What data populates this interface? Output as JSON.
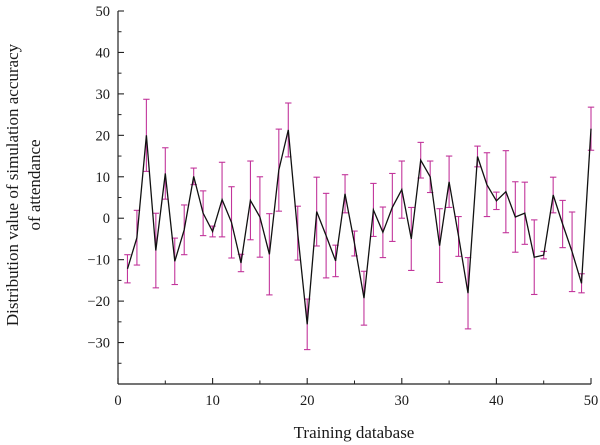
{
  "chart_data": {
    "type": "line",
    "xlabel": "Training database",
    "ylabel_lines": [
      "Distribution value of simulation accuracy",
      "of attendance"
    ],
    "xlim": [
      0,
      50
    ],
    "ylim": [
      -40,
      50
    ],
    "xticks": [
      "0",
      "10",
      "20",
      "30",
      "40",
      "50"
    ],
    "yticks": [
      "50",
      "40",
      "30",
      "20",
      "10",
      "0",
      "-10",
      "-20",
      "-30"
    ],
    "grid": false,
    "legend": "none",
    "line_color": "#111111",
    "errorbar_color": "#c2359b",
    "x": [
      1,
      2,
      3,
      4,
      5,
      6,
      7,
      8,
      9,
      10,
      11,
      12,
      13,
      14,
      15,
      16,
      17,
      18,
      19,
      20,
      21,
      22,
      23,
      24,
      25,
      26,
      27,
      28,
      29,
      30,
      31,
      32,
      33,
      34,
      35,
      36,
      37,
      38,
      39,
      40,
      41,
      42,
      43,
      44,
      45,
      46,
      47,
      48,
      49,
      50
    ],
    "y": [
      -12.2,
      -4.7,
      20.0,
      -7.8,
      10.8,
      -10.4,
      -2.8,
      10.1,
      1.2,
      -3.2,
      4.5,
      -1.0,
      -10.8,
      4.3,
      0.3,
      -8.7,
      11.6,
      21.3,
      -3.6,
      -25.6,
      1.6,
      -4.2,
      -10.3,
      5.9,
      -6.1,
      -19.3,
      2.0,
      -3.4,
      2.6,
      6.9,
      -5.0,
      14.0,
      10.0,
      -6.6,
      8.8,
      -4.4,
      -18.1,
      14.9,
      8.1,
      4.2,
      6.4,
      0.3,
      1.2,
      -9.4,
      -8.9,
      5.6,
      -1.4,
      -8.1,
      -15.7,
      21.6
    ],
    "error": [
      3.4,
      6.6,
      8.7,
      9.0,
      6.2,
      5.6,
      6.0,
      2.0,
      5.4,
      1.3,
      9.0,
      8.6,
      2.1,
      9.5,
      9.7,
      9.8,
      9.9,
      6.5,
      6.5,
      6.1,
      8.3,
      10.2,
      3.8,
      4.6,
      3.0,
      6.5,
      6.4,
      6.1,
      8.2,
      6.9,
      7.6,
      4.3,
      3.8,
      8.9,
      6.2,
      4.8,
      8.6,
      2.5,
      7.7,
      2.1,
      9.9,
      8.5,
      7.5,
      9.0,
      0.9,
      4.3,
      5.7,
      9.6,
      2.3,
      5.2
    ]
  }
}
